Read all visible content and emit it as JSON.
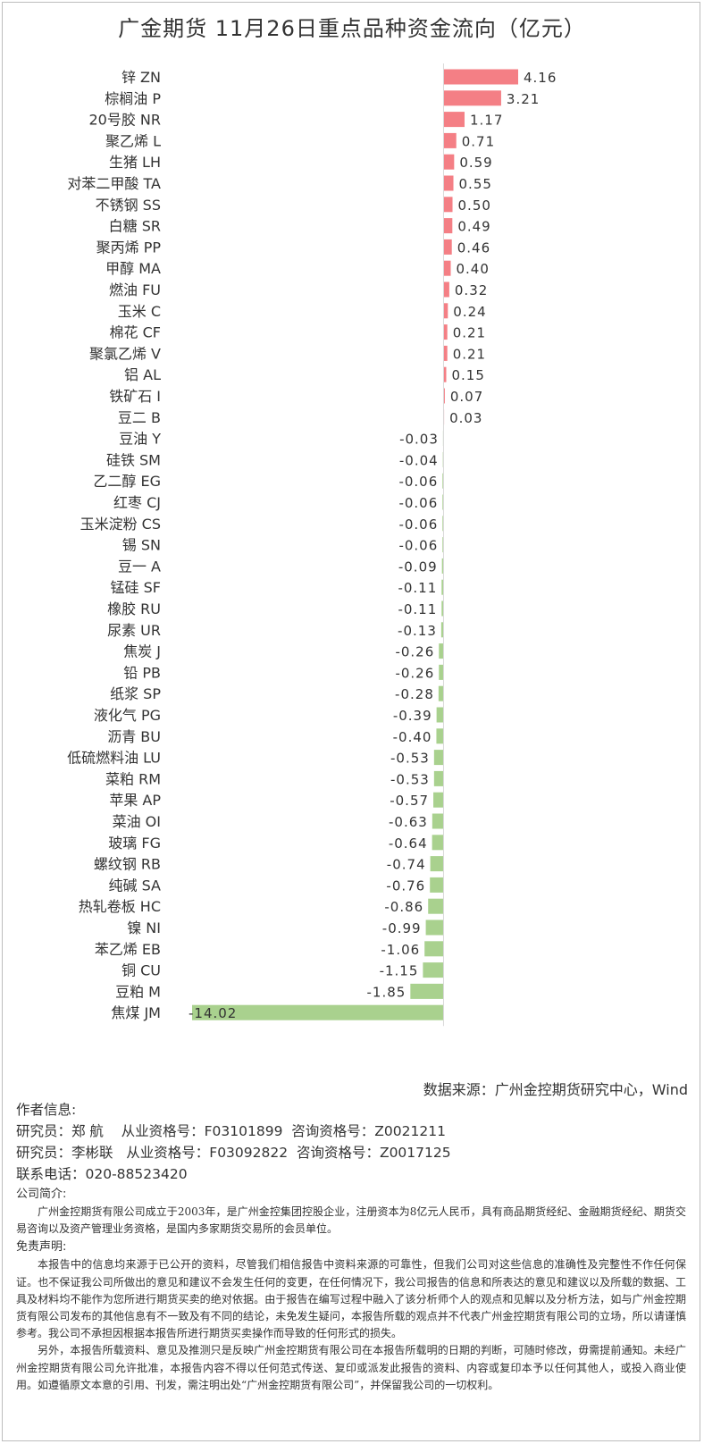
{
  "title": "广金期货 11月26日重点品种资金流向（亿元）",
  "colors": {
    "positive": "#f47f85",
    "negative": "#a9d18e",
    "axis": "#d9d9d9",
    "text": "#333333"
  },
  "chart_data": {
    "type": "bar",
    "orientation": "horizontal",
    "title": "广金期货 11月26日重点品种资金流向（亿元）",
    "categories": [
      "锌 ZN",
      "棕榈油 P",
      "20号胶 NR",
      "聚乙烯 L",
      "生猪 LH",
      "对苯二甲酸 TA",
      "不锈钢 SS",
      "白糖 SR",
      "聚丙烯 PP",
      "甲醇 MA",
      "燃油 FU",
      "玉米 C",
      "棉花 CF",
      "聚氯乙烯 V",
      "铝 AL",
      "铁矿石 I",
      "豆二 B",
      "豆油 Y",
      "硅铁 SM",
      "乙二醇 EG",
      "红枣 CJ",
      "玉米淀粉 CS",
      "锡 SN",
      "豆一 A",
      "锰硅 SF",
      "橡胶 RU",
      "尿素 UR",
      "焦炭 J",
      "铅 PB",
      "纸浆 SP",
      "液化气 PG",
      "沥青 BU",
      "低硫燃料油 LU",
      "菜粕 RM",
      "苹果 AP",
      "菜油 OI",
      "玻璃 FG",
      "螺纹钢 RB",
      "纯碱 SA",
      "热轧卷板 HC",
      "镍 NI",
      "苯乙烯 EB",
      "铜 CU",
      "豆粕 M",
      "焦煤 JM"
    ],
    "values": [
      4.16,
      3.21,
      1.17,
      0.71,
      0.59,
      0.55,
      0.5,
      0.49,
      0.46,
      0.4,
      0.32,
      0.24,
      0.21,
      0.21,
      0.15,
      0.07,
      0.03,
      -0.03,
      -0.04,
      -0.06,
      -0.06,
      -0.06,
      -0.06,
      -0.09,
      -0.11,
      -0.11,
      -0.13,
      -0.26,
      -0.26,
      -0.28,
      -0.39,
      -0.4,
      -0.53,
      -0.53,
      -0.57,
      -0.63,
      -0.64,
      -0.74,
      -0.76,
      -0.86,
      -0.99,
      -1.06,
      -1.15,
      -1.85,
      -14.02
    ],
    "value_labels": [
      "4.16",
      "3.21",
      "1.17",
      "0.71",
      "0.59",
      "0.55",
      "0.50",
      "0.49",
      "0.46",
      "0.40",
      "0.32",
      "0.24",
      "0.21",
      "0.21",
      "0.15",
      "0.07",
      "0.03",
      "-0.03",
      "-0.04",
      "-0.06",
      "-0.06",
      "-0.06",
      "-0.06",
      "-0.09",
      "-0.11",
      "-0.11",
      "-0.13",
      "-0.26",
      "-0.26",
      "-0.28",
      "-0.39",
      "-0.40",
      "-0.53",
      "-0.53",
      "-0.57",
      "-0.63",
      "-0.64",
      "-0.74",
      "-0.76",
      "-0.86",
      "-0.99",
      "-1.06",
      "-1.15",
      "-1.85",
      "-14.02"
    ],
    "xlim": [
      -14.02,
      4.16
    ],
    "grid": false,
    "legend": "none"
  },
  "source": "数据来源：广州金控期货研究中心，Wind",
  "author": {
    "heading": "作者信息:",
    "researcher1": "研究员：郑 航    从业资格号：F03101899  咨询资格号：Z0021211",
    "researcher2": "研究员：李彬联   从业资格号：F03092822  咨询资格号：Z0017125",
    "phone": "联系电话：020-88523420"
  },
  "company": {
    "heading": "公司简介:",
    "text": "广州金控期货有限公司成立于2003年，是广州金控集团控股企业，注册资本为8亿元人民币，具有商品期货经纪、金融期货经纪、期货交易咨询以及资产管理业务资格，是国内多家期货交易所的会员单位。"
  },
  "disclaimer": {
    "heading": "免责声明:",
    "para1": "本报告中的信息均来源于已公开的资料，尽管我们相信报告中资料来源的可靠性，但我们公司对这些信息的准确性及完整性不作任何保证。也不保证我公司所做出的意见和建议不会发生任何的变更，在任何情况下，我公司报告的信息和所表达的意见和建议以及所载的数据、工具及材料均不能作为您所进行期货买卖的绝对依据。由于报告在编写过程中融入了该分析师个人的观点和见解以及分析方法，如与广州金控期货有限公司发布的其他信息有不一致及有不同的结论，未免发生疑问，本报告所载的观点并不代表广州金控期货有限公司的立场，所以请谨慎参考。我公司不承担因根据本报告所进行期货买卖操作而导致的任何形式的损失。",
    "para2": "另外，本报告所载资料、意见及推测只是反映广州金控期货有限公司在本报告所载明的日期的判断，可随时修改，毋需提前通知。未经广州金控期货有限公司允许批准，本报告内容不得以任何范式传送、复印或派发此报告的资料、内容或复印本予以任何其他人，或投入商业使用。如遵循原文本意的引用、刊发，需注明出处“广州金控期货有限公司”，并保留我公司的一切权利。"
  }
}
